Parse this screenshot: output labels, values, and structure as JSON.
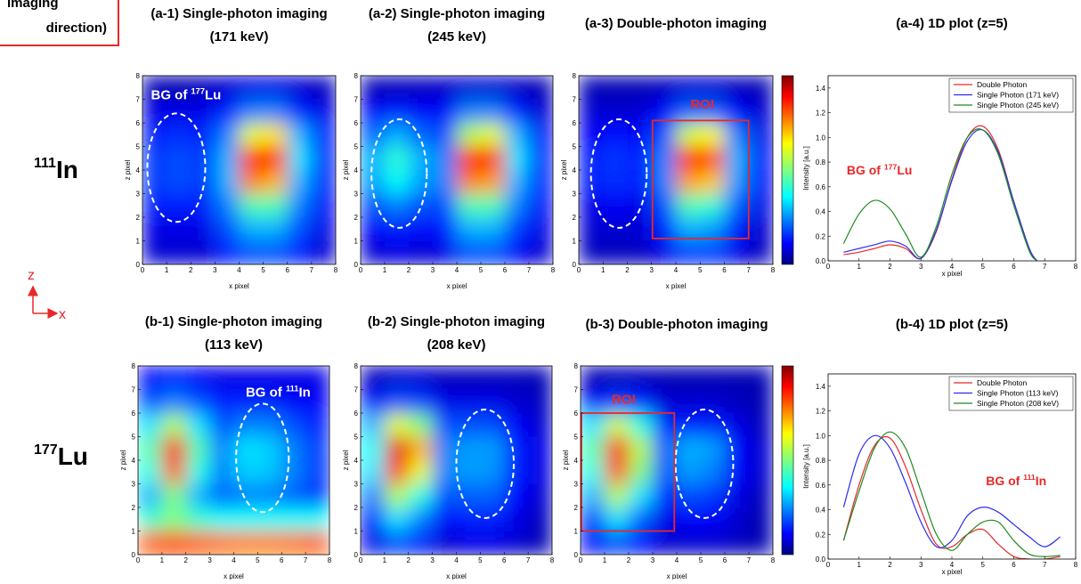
{
  "header": {
    "lines": [
      "imaging",
      "direction)"
    ]
  },
  "row_labels": [
    {
      "sup": "111",
      "after": "In"
    },
    {
      "sup": "177",
      "after": "Lu"
    }
  ],
  "axes_indicator": {
    "vertical": "z",
    "horizontal": "x"
  },
  "chart_data": [
    {
      "type": "heatmap",
      "title": [
        "(a-1) Single-photon imaging",
        "(171 keV)"
      ],
      "xlabel": "x pixel",
      "ylabel": "z pixel",
      "colormap": "jet",
      "colorbar": false,
      "xlim": [
        0,
        8
      ],
      "ylim": [
        0,
        8
      ],
      "xticks": [
        0,
        1,
        2,
        3,
        4,
        5,
        6,
        7,
        8
      ],
      "yticks": [
        0,
        1,
        2,
        3,
        4,
        5,
        6,
        7,
        8
      ],
      "x": [
        0.5,
        1.5,
        2.5,
        3.5,
        4.5,
        5.5,
        6.5,
        7.5
      ],
      "y": [
        7.5,
        6.5,
        5.5,
        4.5,
        3.5,
        2.5,
        1.5,
        0.5
      ],
      "values": [
        [
          0.05,
          0.05,
          0.06,
          0.08,
          0.1,
          0.1,
          0.08,
          0.06
        ],
        [
          0.1,
          0.1,
          0.1,
          0.15,
          0.25,
          0.25,
          0.15,
          0.1
        ],
        [
          0.15,
          0.17,
          0.15,
          0.25,
          0.6,
          0.65,
          0.3,
          0.15
        ],
        [
          0.18,
          0.2,
          0.18,
          0.3,
          0.85,
          0.85,
          0.35,
          0.15
        ],
        [
          0.18,
          0.2,
          0.18,
          0.3,
          0.75,
          0.7,
          0.3,
          0.15
        ],
        [
          0.15,
          0.15,
          0.15,
          0.25,
          0.45,
          0.45,
          0.25,
          0.12
        ],
        [
          0.1,
          0.1,
          0.1,
          0.2,
          0.3,
          0.3,
          0.2,
          0.1
        ],
        [
          0.08,
          0.08,
          0.08,
          0.15,
          0.2,
          0.2,
          0.15,
          0.08
        ]
      ],
      "ellipse": {
        "center": [
          1.4,
          4.1
        ],
        "radii": [
          1.2,
          2.3
        ]
      },
      "label": {
        "text": {
          "before": "BG of ",
          "sup": "177",
          "after": "Lu"
        },
        "x": 0.35,
        "y": 7,
        "color": "#ffffff"
      }
    },
    {
      "type": "heatmap",
      "title": [
        "(a-2) Single-photon imaging",
        "(245 keV)"
      ],
      "xlabel": "x pixel",
      "ylabel": "z pixel",
      "colormap": "jet",
      "colorbar": false,
      "xlim": [
        0,
        8
      ],
      "ylim": [
        0,
        8
      ],
      "xticks": [
        0,
        1,
        2,
        3,
        4,
        5,
        6,
        7,
        8
      ],
      "yticks": [
        0,
        1,
        2,
        3,
        4,
        5,
        6,
        7,
        8
      ],
      "x": [
        0.5,
        1.5,
        2.5,
        3.5,
        4.5,
        5.5,
        6.5,
        7.5
      ],
      "y": [
        7.5,
        6.5,
        5.5,
        4.5,
        3.5,
        2.5,
        1.5,
        0.5
      ],
      "values": [
        [
          0.05,
          0.06,
          0.06,
          0.07,
          0.08,
          0.08,
          0.07,
          0.05
        ],
        [
          0.12,
          0.15,
          0.12,
          0.12,
          0.25,
          0.25,
          0.15,
          0.08
        ],
        [
          0.22,
          0.3,
          0.22,
          0.2,
          0.55,
          0.6,
          0.3,
          0.12
        ],
        [
          0.3,
          0.42,
          0.3,
          0.25,
          0.85,
          0.85,
          0.35,
          0.15
        ],
        [
          0.28,
          0.38,
          0.28,
          0.25,
          0.75,
          0.72,
          0.3,
          0.15
        ],
        [
          0.2,
          0.25,
          0.2,
          0.2,
          0.45,
          0.45,
          0.25,
          0.12
        ],
        [
          0.12,
          0.15,
          0.12,
          0.15,
          0.3,
          0.3,
          0.18,
          0.1
        ],
        [
          0.08,
          0.1,
          0.08,
          0.1,
          0.2,
          0.2,
          0.12,
          0.08
        ]
      ],
      "ellipse": {
        "center": [
          1.6,
          3.85
        ],
        "radii": [
          1.15,
          2.3
        ]
      }
    },
    {
      "type": "heatmap",
      "title": [
        "(a-3) Double-photon imaging"
      ],
      "xlabel": "x pixel",
      "ylabel": "z pixel",
      "colormap": "jet",
      "colorbar": true,
      "xlim": [
        0,
        8
      ],
      "ylim": [
        0,
        8
      ],
      "xticks": [
        0,
        1,
        2,
        3,
        4,
        5,
        6,
        7,
        8
      ],
      "yticks": [
        0,
        1,
        2,
        3,
        4,
        5,
        6,
        7,
        8
      ],
      "x": [
        0.5,
        1.5,
        2.5,
        3.5,
        4.5,
        5.5,
        6.5,
        7.5
      ],
      "y": [
        7.5,
        6.5,
        5.5,
        4.5,
        3.5,
        2.5,
        1.5,
        0.5
      ],
      "values": [
        [
          0.05,
          0.05,
          0.05,
          0.06,
          0.08,
          0.08,
          0.06,
          0.05
        ],
        [
          0.08,
          0.08,
          0.08,
          0.12,
          0.22,
          0.22,
          0.12,
          0.08
        ],
        [
          0.12,
          0.14,
          0.12,
          0.2,
          0.58,
          0.62,
          0.25,
          0.1
        ],
        [
          0.15,
          0.18,
          0.15,
          0.25,
          0.85,
          0.82,
          0.3,
          0.12
        ],
        [
          0.15,
          0.17,
          0.15,
          0.25,
          0.72,
          0.68,
          0.28,
          0.12
        ],
        [
          0.1,
          0.12,
          0.1,
          0.2,
          0.45,
          0.42,
          0.22,
          0.1
        ],
        [
          0.08,
          0.08,
          0.08,
          0.15,
          0.3,
          0.28,
          0.15,
          0.08
        ],
        [
          0.06,
          0.06,
          0.06,
          0.1,
          0.18,
          0.18,
          0.1,
          0.06
        ]
      ],
      "ellipse": {
        "center": [
          1.65,
          3.85
        ],
        "radii": [
          1.15,
          2.3
        ]
      },
      "roi": {
        "label": "ROI",
        "x": [
          3,
          7
        ],
        "y": [
          1.1,
          6.1
        ],
        "label_x": 4.6,
        "label_y": 6.6,
        "color": "#e8282a"
      }
    },
    {
      "type": "line",
      "title": [
        "(a-4) 1D plot (z=5)"
      ],
      "xlabel": "x pixel",
      "ylabel": "Intensity [a.u.]",
      "legend": "upper right",
      "xlim": [
        0,
        8
      ],
      "ylim": [
        0,
        1.5
      ],
      "xticks": [
        0,
        1,
        2,
        3,
        4,
        5,
        6,
        7,
        8
      ],
      "yticks": [
        {
          "value": 0,
          "label": "0.0"
        },
        {
          "value": 0.2,
          "label": "0.2"
        },
        {
          "value": 0.4,
          "label": "0.4"
        },
        {
          "value": 0.6,
          "label": "0.6"
        },
        {
          "value": 0.8,
          "label": "0.8"
        },
        {
          "value": 1,
          "label": "1.0"
        },
        {
          "value": 1.2,
          "label": "1.2"
        },
        {
          "value": 1.4,
          "label": "1.4"
        }
      ],
      "x": [
        0.5,
        1,
        1.5,
        2,
        2.5,
        3,
        3.5,
        4,
        4.5,
        5,
        5.5,
        6,
        6.5,
        6.75
      ],
      "series": [
        {
          "name": "Double Photon",
          "color": "#e8282a",
          "values": [
            0.05,
            0.07,
            0.1,
            0.13,
            0.1,
            0.02,
            0.24,
            0.66,
            1.0,
            1.09,
            0.9,
            0.48,
            0.1,
            0
          ]
        },
        {
          "name": "Single Photon (171 keV)",
          "color": "#2c2cf0",
          "values": [
            0.07,
            0.1,
            0.13,
            0.16,
            0.12,
            0.02,
            0.25,
            0.65,
            0.97,
            1.06,
            0.88,
            0.48,
            0.1,
            0
          ]
        },
        {
          "name": "Single Photon (245 keV)",
          "color": "#1f8a1f",
          "values": [
            0.14,
            0.38,
            0.49,
            0.42,
            0.22,
            0.03,
            0.28,
            0.7,
            1.0,
            1.06,
            0.86,
            0.45,
            0.08,
            0
          ]
        }
      ],
      "annotation": {
        "text": {
          "before": "BG of ",
          "sup": "177",
          "after": "Lu"
        },
        "x": 0.6,
        "y": 0.7,
        "color": "#e8282a"
      }
    },
    {
      "type": "heatmap",
      "title": [
        "(b-1) Single-photon imaging",
        "(113 keV)"
      ],
      "xlabel": "x pixel",
      "ylabel": "z pixel",
      "colormap": "jet",
      "colorbar": false,
      "xlim": [
        0,
        8
      ],
      "ylim": [
        0,
        8
      ],
      "xticks": [
        0,
        1,
        2,
        3,
        4,
        5,
        6,
        7,
        8
      ],
      "yticks": [
        0,
        1,
        2,
        3,
        4,
        5,
        6,
        7,
        8
      ],
      "x": [
        0.5,
        1.5,
        2.5,
        3.5,
        4.5,
        5.5,
        6.5,
        7.5
      ],
      "y": [
        7.5,
        6.5,
        5.5,
        4.5,
        3.5,
        2.5,
        1.5,
        0.5
      ],
      "values": [
        [
          0.12,
          0.15,
          0.12,
          0.1,
          0.1,
          0.1,
          0.1,
          0.1
        ],
        [
          0.2,
          0.25,
          0.2,
          0.15,
          0.15,
          0.15,
          0.12,
          0.12
        ],
        [
          0.35,
          0.55,
          0.35,
          0.2,
          0.25,
          0.25,
          0.2,
          0.15
        ],
        [
          0.45,
          0.88,
          0.45,
          0.25,
          0.35,
          0.33,
          0.25,
          0.18
        ],
        [
          0.4,
          0.78,
          0.4,
          0.25,
          0.33,
          0.32,
          0.25,
          0.18
        ],
        [
          0.3,
          0.5,
          0.3,
          0.22,
          0.25,
          0.25,
          0.22,
          0.18
        ],
        [
          0.42,
          0.5,
          0.42,
          0.38,
          0.38,
          0.38,
          0.38,
          0.38
        ],
        [
          0.78,
          0.8,
          0.78,
          0.76,
          0.75,
          0.75,
          0.76,
          0.78
        ]
      ],
      "ellipse": {
        "center": [
          5.2,
          4.1
        ],
        "radii": [
          1.1,
          2.3
        ]
      },
      "label": {
        "text": {
          "before": "BG of ",
          "sup": "111",
          "after": "In"
        },
        "x": 4.5,
        "y": 6.7,
        "color": "#ffffff"
      }
    },
    {
      "type": "heatmap",
      "title": [
        "(b-2) Single-photon imaging",
        "(208 keV)"
      ],
      "xlabel": "x pixel",
      "ylabel": "z pixel",
      "colormap": "jet",
      "colorbar": false,
      "xlim": [
        0,
        8
      ],
      "ylim": [
        0,
        8
      ],
      "xticks": [
        0,
        1,
        2,
        3,
        4,
        5,
        6,
        7,
        8
      ],
      "yticks": [
        0,
        1,
        2,
        3,
        4,
        5,
        6,
        7,
        8
      ],
      "x": [
        0.5,
        1.5,
        2.5,
        3.5,
        4.5,
        5.5,
        6.5,
        7.5
      ],
      "y": [
        7.5,
        6.5,
        5.5,
        4.5,
        3.5,
        2.5,
        1.5,
        0.5
      ],
      "values": [
        [
          0.06,
          0.08,
          0.08,
          0.06,
          0.06,
          0.06,
          0.06,
          0.05
        ],
        [
          0.12,
          0.2,
          0.18,
          0.1,
          0.1,
          0.1,
          0.08,
          0.06
        ],
        [
          0.3,
          0.6,
          0.5,
          0.2,
          0.2,
          0.2,
          0.12,
          0.08
        ],
        [
          0.38,
          0.9,
          0.7,
          0.25,
          0.28,
          0.28,
          0.15,
          0.1
        ],
        [
          0.35,
          0.82,
          0.6,
          0.25,
          0.28,
          0.27,
          0.15,
          0.1
        ],
        [
          0.25,
          0.55,
          0.4,
          0.2,
          0.22,
          0.22,
          0.13,
          0.08
        ],
        [
          0.15,
          0.35,
          0.25,
          0.12,
          0.15,
          0.15,
          0.1,
          0.06
        ],
        [
          0.1,
          0.2,
          0.15,
          0.08,
          0.1,
          0.1,
          0.08,
          0.05
        ]
      ],
      "ellipse": {
        "center": [
          5.2,
          3.85
        ],
        "radii": [
          1.2,
          2.3
        ]
      }
    },
    {
      "type": "heatmap",
      "title": [
        "(b-3) Double-photon imaging"
      ],
      "xlabel": "x pixel",
      "ylabel": "z pixel",
      "colormap": "jet",
      "colorbar": true,
      "xlim": [
        0,
        8
      ],
      "ylim": [
        0,
        8
      ],
      "xticks": [
        0,
        1,
        2,
        3,
        4,
        5,
        6,
        7,
        8
      ],
      "yticks": [
        0,
        1,
        2,
        3,
        4,
        5,
        6,
        7,
        8
      ],
      "x": [
        0.5,
        1.5,
        2.5,
        3.5,
        4.5,
        5.5,
        6.5,
        7.5
      ],
      "y": [
        7.5,
        6.5,
        5.5,
        4.5,
        3.5,
        2.5,
        1.5,
        0.5
      ],
      "values": [
        [
          0.05,
          0.06,
          0.06,
          0.05,
          0.05,
          0.05,
          0.05,
          0.05
        ],
        [
          0.12,
          0.18,
          0.15,
          0.08,
          0.08,
          0.08,
          0.06,
          0.05
        ],
        [
          0.35,
          0.58,
          0.4,
          0.15,
          0.15,
          0.15,
          0.1,
          0.06
        ],
        [
          0.45,
          0.88,
          0.55,
          0.2,
          0.3,
          0.28,
          0.12,
          0.08
        ],
        [
          0.4,
          0.8,
          0.5,
          0.2,
          0.28,
          0.25,
          0.12,
          0.08
        ],
        [
          0.3,
          0.55,
          0.35,
          0.15,
          0.2,
          0.18,
          0.1,
          0.06
        ],
        [
          0.18,
          0.35,
          0.22,
          0.1,
          0.12,
          0.12,
          0.08,
          0.05
        ],
        [
          0.12,
          0.2,
          0.14,
          0.08,
          0.08,
          0.08,
          0.06,
          0.05
        ]
      ],
      "ellipse": {
        "center": [
          5.15,
          3.85
        ],
        "radii": [
          1.2,
          2.3
        ]
      },
      "roi": {
        "label": "ROI",
        "x": [
          0,
          3.9
        ],
        "y": [
          1,
          6
        ],
        "label_x": 1.3,
        "label_y": 6.4,
        "color": "#e8282a"
      }
    },
    {
      "type": "line",
      "title": [
        "(b-4) 1D plot (z=5)"
      ],
      "xlabel": "x pixel",
      "ylabel": "Intensity [a.u.]",
      "legend": "upper right",
      "xlim": [
        0,
        8
      ],
      "ylim": [
        0,
        1.5
      ],
      "xticks": [
        0,
        1,
        2,
        3,
        4,
        5,
        6,
        7,
        8
      ],
      "yticks": [
        {
          "value": 0,
          "label": "0.0"
        },
        {
          "value": 0.2,
          "label": "0.2"
        },
        {
          "value": 0.4,
          "label": "0.4"
        },
        {
          "value": 0.6,
          "label": "0.6"
        },
        {
          "value": 0.8,
          "label": "0.8"
        },
        {
          "value": 1,
          "label": "1.0"
        },
        {
          "value": 1.2,
          "label": "1.2"
        },
        {
          "value": 1.4,
          "label": "1.4"
        }
      ],
      "x": [
        0.5,
        1,
        1.5,
        2,
        2.5,
        3,
        3.5,
        4,
        4.5,
        5,
        5.5,
        6,
        6.5,
        7,
        7.5
      ],
      "series": [
        {
          "name": "Double Photon",
          "color": "#e8282a",
          "values": [
            0.15,
            0.6,
            0.92,
            0.98,
            0.75,
            0.4,
            0.12,
            0.1,
            0.2,
            0.24,
            0.12,
            0.02,
            0,
            0,
            0.02
          ]
        },
        {
          "name": "Single Photon (113 keV)",
          "color": "#2c2cf0",
          "values": [
            0.42,
            0.85,
            1.0,
            0.9,
            0.62,
            0.3,
            0.1,
            0.15,
            0.35,
            0.42,
            0.38,
            0.28,
            0.18,
            0.1,
            0.18
          ]
        },
        {
          "name": "Single Photon (208 keV)",
          "color": "#1f8a1f",
          "values": [
            0.15,
            0.55,
            0.9,
            1.03,
            0.9,
            0.55,
            0.2,
            0.07,
            0.2,
            0.3,
            0.3,
            0.15,
            0.04,
            0.02,
            0.03
          ]
        }
      ],
      "annotation": {
        "text": {
          "before": "BG of ",
          "sup": "111",
          "after": "In"
        },
        "x": 5.1,
        "y": 0.6,
        "color": "#e8282a"
      }
    }
  ]
}
